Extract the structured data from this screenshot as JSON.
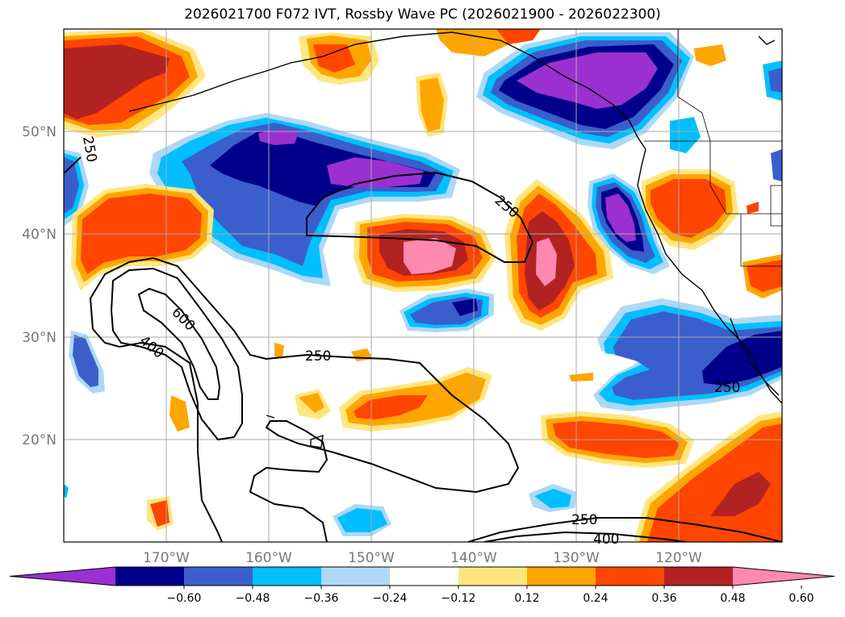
{
  "title": "2026021700 F072 IVT, Rossby Wave PC (2026021900 - 2026022300)",
  "axes": {
    "lat_ticks": [
      "20°N",
      "30°N",
      "40°N",
      "50°N"
    ],
    "lon_ticks": [
      "170°W",
      "160°W",
      "150°W",
      "140°W",
      "130°W",
      "120°W"
    ]
  },
  "colorbar": {
    "ticks": [
      "−0.60",
      "−0.48",
      "−0.36",
      "−0.24",
      "−0.12",
      "0.12",
      "0.24",
      "0.36",
      "0.48",
      "0.60"
    ],
    "colors": [
      "#9b30d0",
      "#00008b",
      "#3a5fcd",
      "#00bfff",
      "#add8f6",
      "#ffffff",
      "#ffe680",
      "#ffa500",
      "#ff4500",
      "#b22222",
      "#ff88b0"
    ]
  },
  "contour_labels": [
    "250",
    "250",
    "250",
    "250",
    "250",
    "400",
    "400",
    "600"
  ]
}
